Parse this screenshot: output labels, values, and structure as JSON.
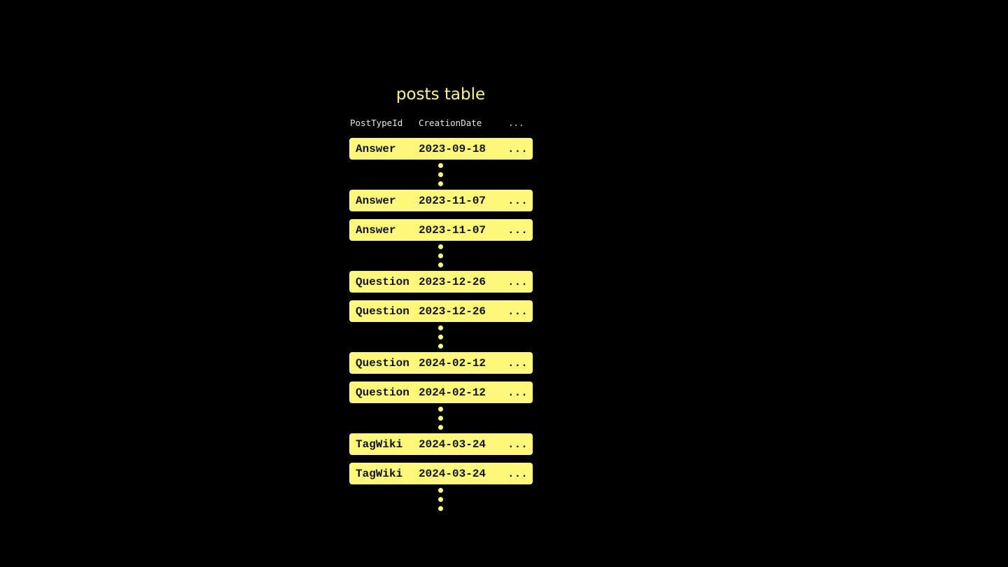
{
  "title": "posts table",
  "columns": [
    "PostTypeId",
    "CreationDate",
    "..."
  ],
  "rows": [
    {
      "type": "Answer",
      "date": "2023-09-18",
      "more": "..."
    },
    {
      "type": "Answer",
      "date": "2023-11-07",
      "more": "..."
    },
    {
      "type": "Answer",
      "date": "2023-11-07",
      "more": "..."
    },
    {
      "type": "Question",
      "date": "2023-12-26",
      "more": "..."
    },
    {
      "type": "Question",
      "date": "2023-12-26",
      "more": "..."
    },
    {
      "type": "Question",
      "date": "2024-02-12",
      "more": "..."
    },
    {
      "type": "Question",
      "date": "2024-02-12",
      "more": "..."
    },
    {
      "type": "TagWiki",
      "date": "2024-03-24",
      "more": "..."
    },
    {
      "type": "TagWiki",
      "date": "2024-03-24",
      "more": "..."
    }
  ],
  "colors": {
    "accent": "#fdf87a",
    "background": "#000000"
  }
}
